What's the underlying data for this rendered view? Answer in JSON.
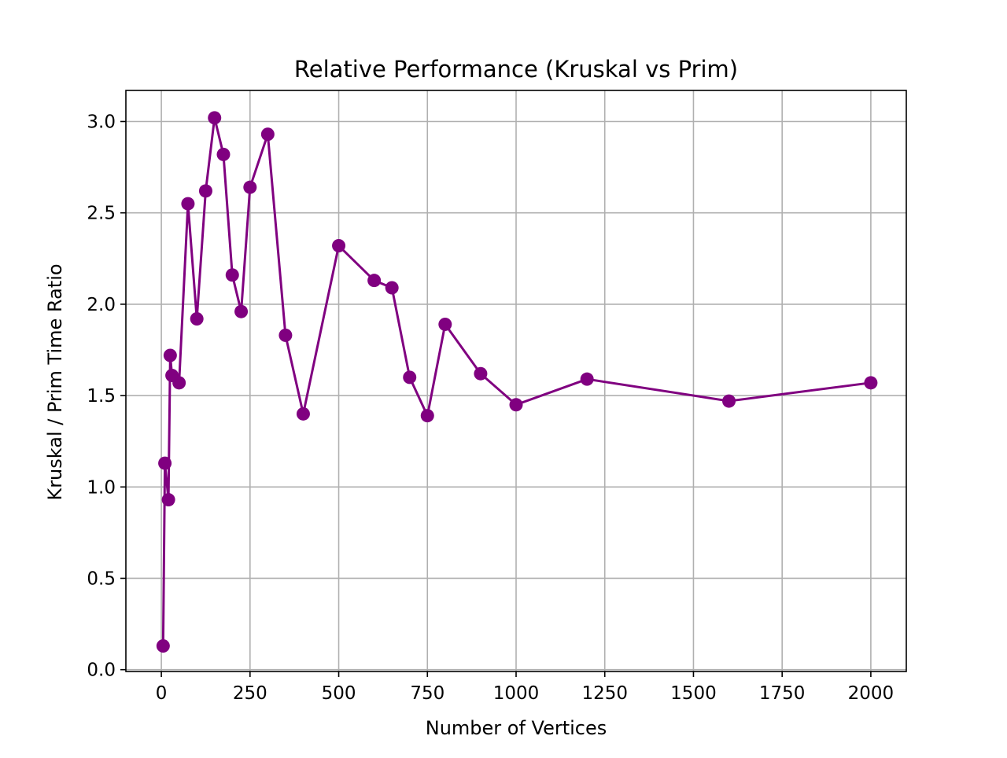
{
  "chart_data": {
    "type": "line",
    "title": "Relative Performance (Kruskal vs Prim)",
    "xlabel": "Number of Vertices",
    "ylabel": "Kruskal / Prim Time Ratio",
    "xlim": [
      -100,
      2100
    ],
    "ylim": [
      -0.01,
      3.17
    ],
    "xticks": [
      0,
      250,
      500,
      750,
      1000,
      1250,
      1500,
      1750,
      2000
    ],
    "xtick_labels": [
      "0",
      "250",
      "500",
      "750",
      "1000",
      "1250",
      "1500",
      "1750",
      "2000"
    ],
    "yticks": [
      0.0,
      0.5,
      1.0,
      1.5,
      2.0,
      2.5,
      3.0
    ],
    "ytick_labels": [
      "0.0",
      "0.5",
      "1.0",
      "1.5",
      "2.0",
      "2.5",
      "3.0"
    ],
    "grid": true,
    "legend": null,
    "series": [
      {
        "color": "#800080",
        "marker": "circle",
        "x": [
          5,
          10,
          20,
          25,
          30,
          50,
          75,
          100,
          125,
          150,
          175,
          200,
          225,
          250,
          300,
          350,
          400,
          500,
          600,
          650,
          700,
          750,
          800,
          900,
          1000,
          1200,
          1600,
          2000
        ],
        "y": [
          0.13,
          1.13,
          0.93,
          1.72,
          1.61,
          1.57,
          2.55,
          1.92,
          2.62,
          3.02,
          2.82,
          2.16,
          1.96,
          2.64,
          2.93,
          1.83,
          1.4,
          2.32,
          2.13,
          2.09,
          1.6,
          1.39,
          1.89,
          1.62,
          1.45,
          1.59,
          1.47,
          1.57
        ]
      }
    ]
  }
}
